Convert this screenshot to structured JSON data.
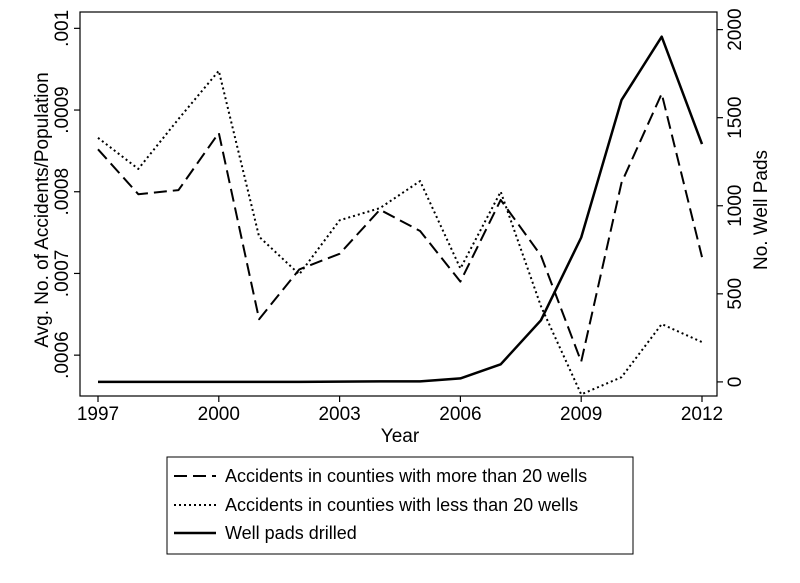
{
  "chart_data": {
    "type": "line",
    "x": [
      1997,
      1998,
      1999,
      2000,
      2001,
      2002,
      2003,
      2004,
      2005,
      2006,
      2007,
      2008,
      2009,
      2010,
      2011,
      2012
    ],
    "xlabel": "Year",
    "xticks": [
      "1997",
      "2000",
      "2003",
      "2006",
      "2009",
      "2012"
    ],
    "xlim": [
      1997,
      2012
    ],
    "ylabel_left": "Avg. No. of Accidents/Population",
    "yticks_left": [
      ".0006",
      ".0007",
      ".0008",
      ".0009",
      ".001"
    ],
    "ylim_left": [
      0.00055,
      0.00102
    ],
    "ylabel_right": "No. Well Pads",
    "yticks_right": [
      "0",
      "500",
      "1000",
      "1500",
      "2000"
    ],
    "ylim_right": [
      -80,
      2100
    ],
    "grid": false,
    "legend_position": "bottom",
    "series": [
      {
        "name": "Accidents in counties with more than 20 wells",
        "axis": "left",
        "style": "dashed",
        "values": [
          0.000852,
          0.000797,
          0.000802,
          0.000872,
          0.000644,
          0.000705,
          0.000724,
          0.000778,
          0.000752,
          0.00069,
          0.00079,
          0.000722,
          0.000592,
          0.000811,
          0.00092,
          0.00072
        ]
      },
      {
        "name": "Accidents in counties with less than 20 wells",
        "axis": "left",
        "style": "dotted",
        "values": [
          0.000866,
          0.000828,
          0.000889,
          0.000948,
          0.000745,
          0.000699,
          0.000765,
          0.00078,
          0.000813,
          0.000706,
          0.0008,
          0.00066,
          0.000552,
          0.000573,
          0.000638,
          0.000616
        ]
      },
      {
        "name": "Well pads drilled",
        "axis": "right",
        "style": "solid",
        "values": [
          0,
          0,
          0,
          0,
          0,
          0,
          2,
          3,
          3,
          20,
          100,
          350,
          820,
          1600,
          1960,
          1350
        ]
      }
    ]
  }
}
